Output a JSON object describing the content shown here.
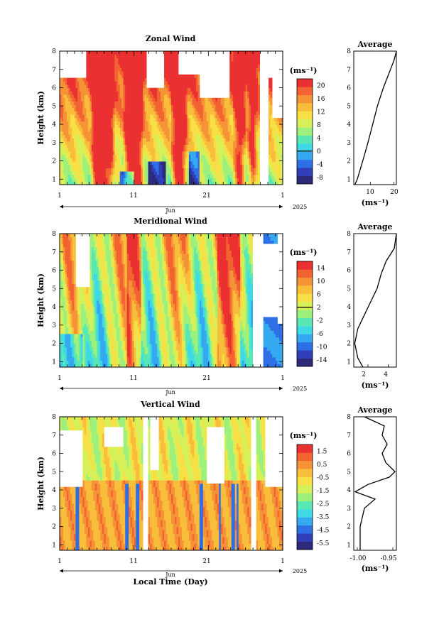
{
  "figure": {
    "xlabel": "Local Time (Day)",
    "time_label": "Jun",
    "year": "2025"
  },
  "chart_data": [
    {
      "type": "heatmap",
      "title": "Zonal Wind",
      "units": "(ms⁻¹)",
      "ylabel": "Height (km)",
      "xticks": [
        "1",
        "11",
        "21",
        "1"
      ],
      "yticks": [
        "1",
        "2",
        "3",
        "4",
        "5",
        "6",
        "7",
        "8"
      ],
      "ylim": [
        0.7,
        8
      ],
      "colorbar": {
        "ticks": [
          "20",
          "16",
          "12",
          "8",
          "4",
          "0",
          "-4",
          "-8"
        ],
        "range": [
          -10,
          22
        ]
      },
      "profile": {
        "title": "Average",
        "xlabel": "(ms⁻¹)",
        "xticks": [
          "10",
          "20"
        ],
        "xlim": [
          3,
          21
        ],
        "heights": [
          0.7,
          1,
          2,
          3,
          4,
          5,
          6,
          7,
          7.5,
          8
        ],
        "values": [
          3.5,
          4.5,
          6.8,
          9,
          11,
          13,
          15.5,
          18.5,
          20,
          21
        ]
      }
    },
    {
      "type": "heatmap",
      "title": "Meridional Wind",
      "units": "(ms⁻¹)",
      "ylabel": "Height (km)",
      "xticks": [
        "1",
        "11",
        "21",
        "1"
      ],
      "yticks": [
        "1",
        "2",
        "3",
        "4",
        "5",
        "6",
        "7",
        "8"
      ],
      "ylim": [
        0.7,
        8
      ],
      "colorbar": {
        "ticks": [
          "14",
          "10",
          "6",
          "2",
          "-2",
          "-6",
          "-10",
          "-14"
        ],
        "range": [
          -16,
          16
        ]
      },
      "profile": {
        "title": "Average",
        "xlabel": "(ms⁻¹)",
        "xticks": [
          "2",
          "4"
        ],
        "xlim": [
          0.6,
          4.8
        ],
        "heights": [
          0.7,
          1.2,
          2,
          2.8,
          3.5,
          4.2,
          5,
          5.8,
          6.5,
          7.2,
          8
        ],
        "values": [
          1.5,
          1.0,
          0.7,
          1.0,
          1.6,
          2.2,
          2.9,
          3.3,
          3.8,
          4.6,
          4.8
        ]
      }
    },
    {
      "type": "heatmap",
      "title": "Vertical Wind",
      "units": "(ms⁻¹)",
      "ylabel": "Height (km)",
      "xticks": [
        "1",
        "11",
        "21",
        "1"
      ],
      "yticks": [
        "1",
        "2",
        "3",
        "4",
        "5",
        "6",
        "7",
        "8"
      ],
      "ylim": [
        0.7,
        8
      ],
      "colorbar": {
        "ticks": [
          "1.5",
          "0.5",
          "-0.5",
          "-1.5",
          "-2.5",
          "-3.5",
          "-4.5",
          "-5.5"
        ],
        "range": [
          -6,
          2
        ]
      },
      "profile": {
        "title": "Average",
        "xlabel": "(ms⁻¹)",
        "xticks": [
          "-1.00",
          "-0.95"
        ],
        "xlim": [
          -1.005,
          -0.945
        ],
        "heights": [
          0.7,
          2,
          3,
          3.5,
          3.9,
          4.3,
          4.7,
          5.0,
          5.5,
          6.0,
          6.5,
          7.0,
          7.5,
          8
        ],
        "values": [
          -0.996,
          -0.996,
          -0.99,
          -0.975,
          -1.003,
          -0.985,
          -0.955,
          -0.947,
          -0.96,
          -0.965,
          -0.958,
          -0.965,
          -0.962,
          -0.99
        ]
      }
    }
  ]
}
